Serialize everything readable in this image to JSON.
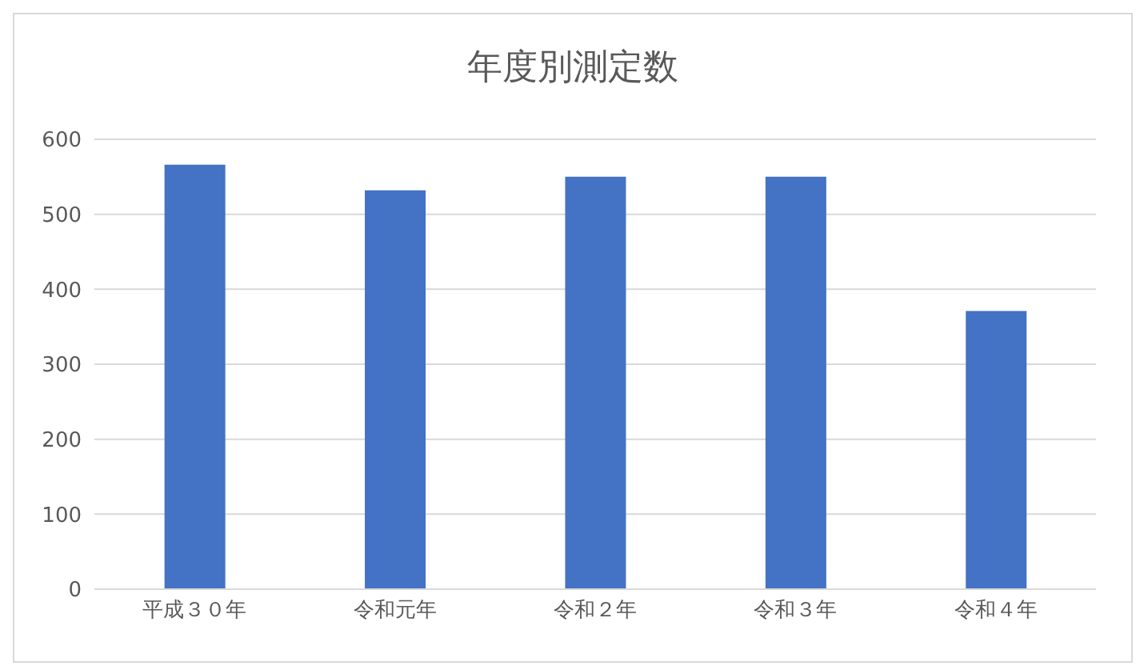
{
  "chart_data": {
    "type": "bar",
    "title": "年度別測定数",
    "categories": [
      "平成３０年",
      "令和元年",
      "令和２年",
      "令和３年",
      "令和４年"
    ],
    "values": [
      566,
      532,
      550,
      550,
      371
    ],
    "color": "#4472c4",
    "ylim": [
      0,
      600
    ],
    "yticks": [
      0,
      100,
      200,
      300,
      400,
      500,
      600
    ],
    "grid": "y"
  }
}
